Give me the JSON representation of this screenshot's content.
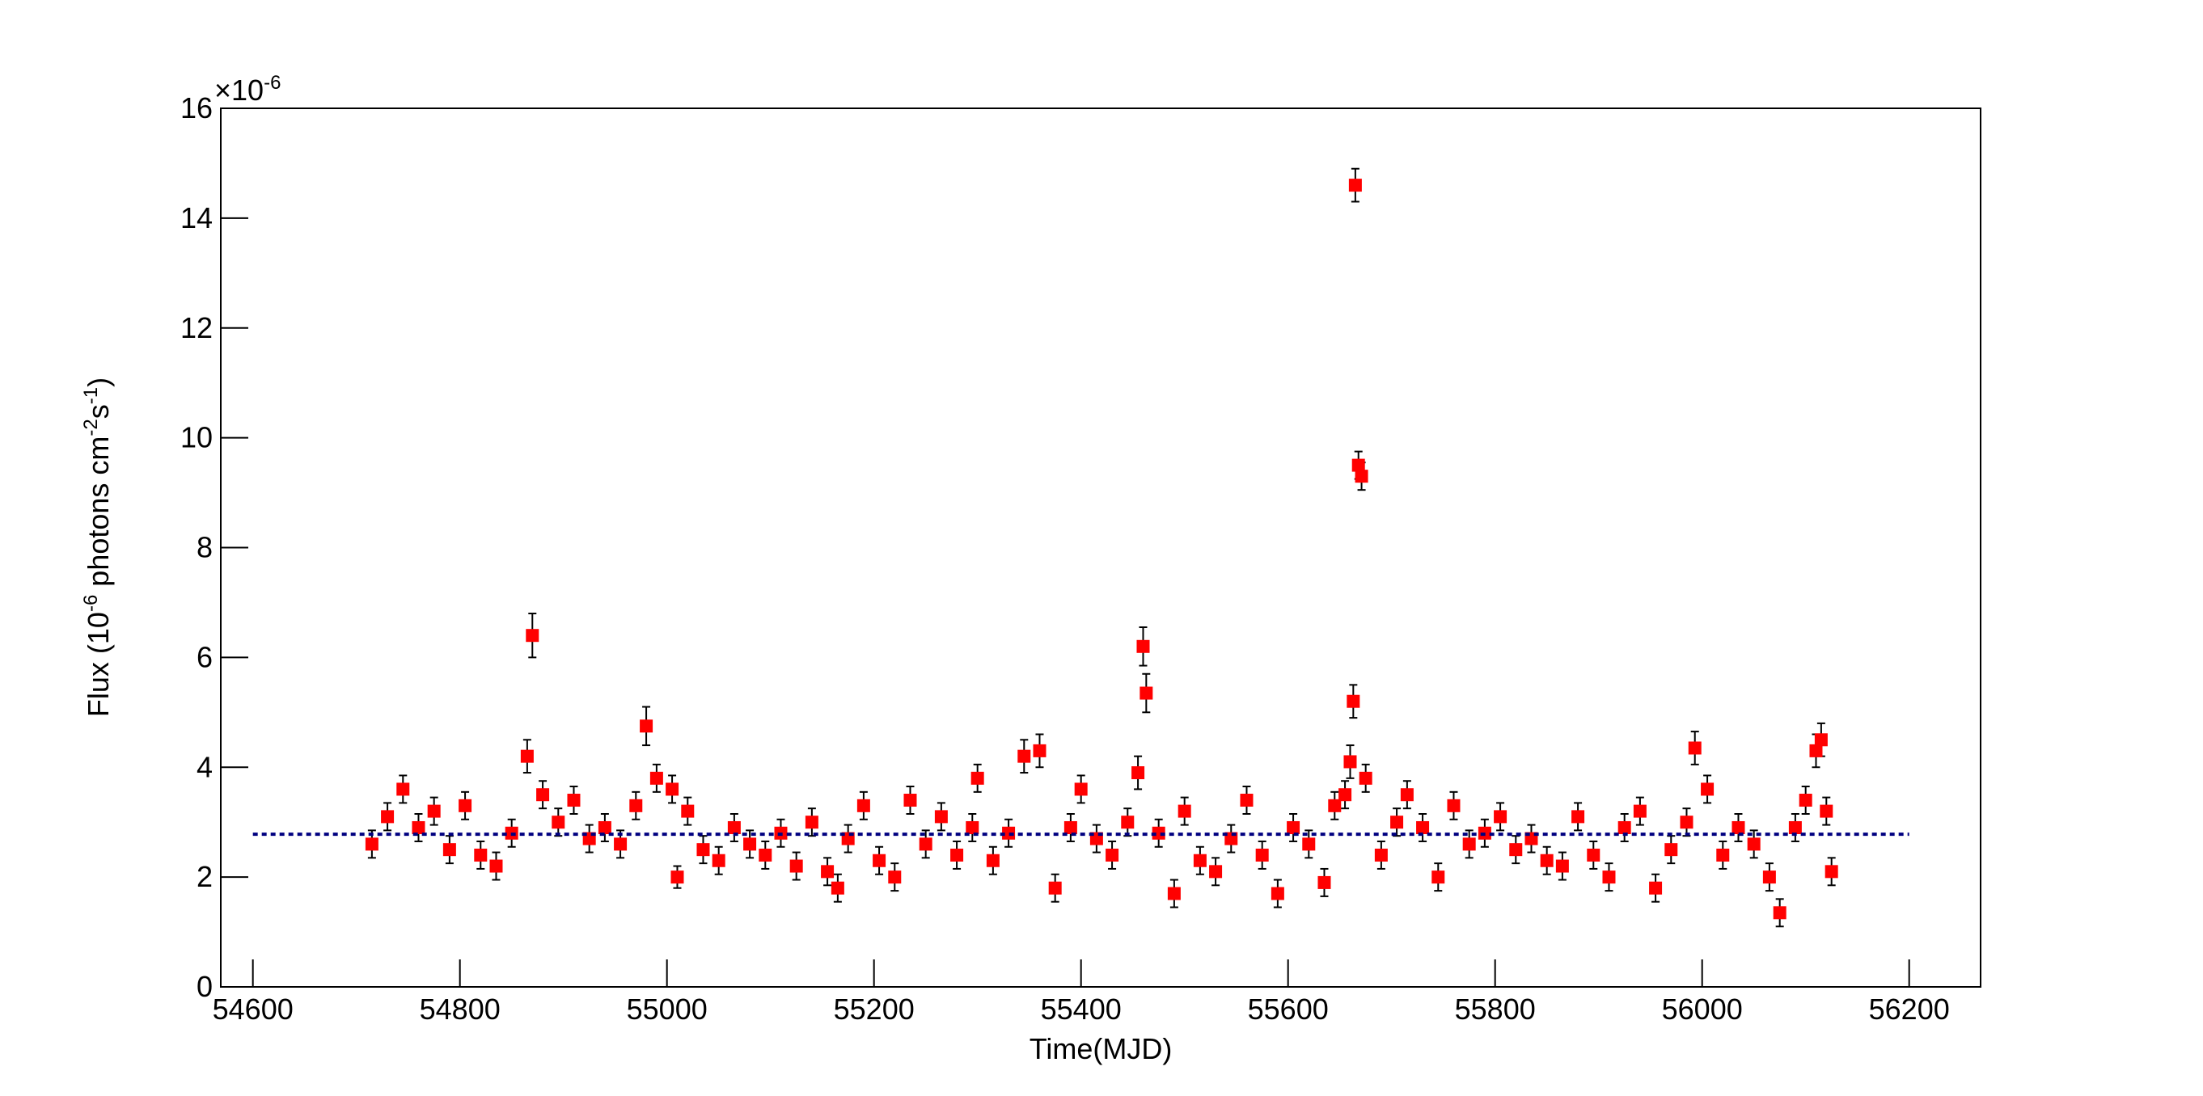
{
  "chart_data": {
    "type": "scatter",
    "xlabel": "Time(MJD)",
    "ylabel": [
      "Flux (10",
      "-6",
      " photons cm",
      "-2",
      "s",
      "-1",
      ")"
    ],
    "y_multiplier": [
      "×10",
      "-6"
    ],
    "xlim": [
      54569,
      56269
    ],
    "ylim": [
      0,
      16
    ],
    "xticks": [
      54600,
      54800,
      55000,
      55200,
      55400,
      55600,
      55800,
      56000,
      56200
    ],
    "yticks": [
      0,
      2,
      4,
      6,
      8,
      10,
      12,
      14,
      16
    ],
    "series": [
      {
        "color": "#ff0000",
        "error_color": "#000000",
        "x": [
          54715,
          54730,
          54745,
          54760,
          54775,
          54790,
          54805,
          54820,
          54835,
          54850,
          54865,
          54870,
          54880,
          54895,
          54910,
          54925,
          54940,
          54955,
          54970,
          54980,
          54990,
          55005,
          55010,
          55020,
          55035,
          55050,
          55065,
          55080,
          55095,
          55110,
          55125,
          55140,
          55155,
          55165,
          55175,
          55190,
          55205,
          55220,
          55235,
          55250,
          55265,
          55280,
          55295,
          55300,
          55315,
          55330,
          55345,
          55360,
          55375,
          55390,
          55400,
          55415,
          55430,
          55445,
          55455,
          55460,
          55463,
          55475,
          55490,
          55500,
          55515,
          55530,
          55545,
          55560,
          55575,
          55590,
          55605,
          55620,
          55635,
          55645,
          55655,
          55660,
          55663,
          55665,
          55668,
          55671,
          55675,
          55690,
          55705,
          55715,
          55730,
          55745,
          55760,
          55775,
          55790,
          55805,
          55820,
          55835,
          55850,
          55865,
          55880,
          55895,
          55910,
          55925,
          55940,
          55955,
          55970,
          55985,
          55993,
          56005,
          56020,
          56035,
          56050,
          56065,
          56075,
          56090,
          56100,
          56110,
          56115,
          56120,
          56125
        ],
        "values": [
          2.6,
          3.1,
          3.6,
          2.9,
          3.2,
          2.5,
          3.3,
          2.4,
          2.2,
          2.8,
          4.2,
          6.4,
          3.5,
          3.0,
          3.4,
          2.7,
          2.9,
          2.6,
          3.3,
          4.75,
          3.8,
          3.6,
          2.0,
          3.2,
          2.5,
          2.3,
          2.9,
          2.6,
          2.4,
          2.8,
          2.2,
          3.0,
          2.1,
          1.8,
          2.7,
          3.3,
          2.3,
          2.0,
          3.4,
          2.6,
          3.1,
          2.4,
          2.9,
          3.8,
          2.3,
          2.8,
          4.2,
          4.3,
          1.8,
          2.9,
          3.6,
          2.7,
          2.4,
          3.0,
          3.9,
          6.2,
          5.35,
          2.8,
          1.7,
          3.2,
          2.3,
          2.1,
          2.7,
          3.4,
          2.4,
          1.7,
          2.9,
          2.6,
          1.9,
          3.3,
          3.5,
          4.1,
          5.2,
          14.6,
          9.5,
          9.3,
          3.8,
          2.4,
          3.0,
          3.5,
          2.9,
          2.0,
          3.3,
          2.6,
          2.8,
          3.1,
          2.5,
          2.7,
          2.3,
          2.2,
          3.1,
          2.4,
          2.0,
          2.9,
          3.2,
          1.8,
          2.5,
          3.0,
          4.35,
          3.6,
          2.4,
          2.9,
          2.6,
          2.0,
          1.35,
          2.9,
          3.4,
          4.3,
          4.5,
          3.2,
          2.1
        ],
        "errors": [
          0.25,
          0.25,
          0.25,
          0.25,
          0.25,
          0.25,
          0.25,
          0.25,
          0.25,
          0.25,
          0.3,
          0.4,
          0.25,
          0.25,
          0.25,
          0.25,
          0.25,
          0.25,
          0.25,
          0.35,
          0.25,
          0.25,
          0.2,
          0.25,
          0.25,
          0.25,
          0.25,
          0.25,
          0.25,
          0.25,
          0.25,
          0.25,
          0.25,
          0.25,
          0.25,
          0.25,
          0.25,
          0.25,
          0.25,
          0.25,
          0.25,
          0.25,
          0.25,
          0.25,
          0.25,
          0.25,
          0.3,
          0.3,
          0.25,
          0.25,
          0.25,
          0.25,
          0.25,
          0.25,
          0.3,
          0.35,
          0.35,
          0.25,
          0.25,
          0.25,
          0.25,
          0.25,
          0.25,
          0.25,
          0.25,
          0.25,
          0.25,
          0.25,
          0.25,
          0.25,
          0.25,
          0.3,
          0.3,
          0.3,
          0.25,
          0.25,
          0.25,
          0.25,
          0.25,
          0.25,
          0.25,
          0.25,
          0.25,
          0.25,
          0.25,
          0.25,
          0.25,
          0.25,
          0.25,
          0.25,
          0.25,
          0.25,
          0.25,
          0.25,
          0.25,
          0.25,
          0.25,
          0.25,
          0.3,
          0.25,
          0.25,
          0.25,
          0.25,
          0.25,
          0.25,
          0.25,
          0.25,
          0.3,
          0.3,
          0.25,
          0.25
        ]
      }
    ],
    "reference_line": {
      "value": 2.78,
      "x": [
        54600,
        56200
      ],
      "color": "#000080",
      "dashed": true
    }
  }
}
